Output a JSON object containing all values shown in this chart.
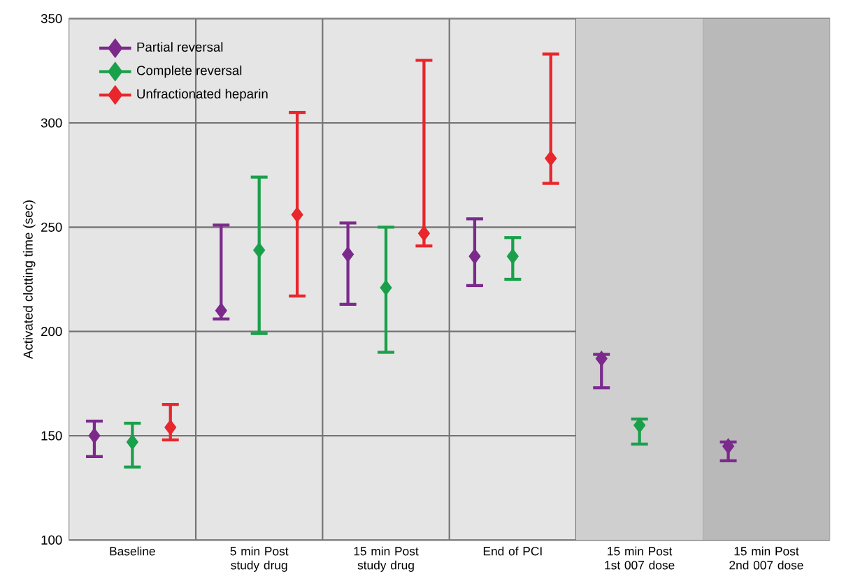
{
  "chart_data": {
    "type": "scatter",
    "ylabel": "Activated clotting time (sec)",
    "categories": [
      "Baseline",
      "5 min Post study drug",
      "15 min Post study drug",
      "End of PCI",
      "15 min Post 1st 007 dose",
      "15 min Post 2nd 007 dose"
    ],
    "series": [
      {
        "name": "Partial reversal",
        "color": "#7b2a8c",
        "values": [
          150,
          210,
          237,
          236,
          187,
          145
        ],
        "errors": [
          [
            140,
            157
          ],
          [
            206,
            251
          ],
          [
            213,
            252
          ],
          [
            222,
            254
          ],
          [
            173,
            189
          ],
          [
            138,
            147
          ]
        ]
      },
      {
        "name": "Complete reversal",
        "color": "#1aa04a",
        "values": [
          147,
          239,
          221,
          236,
          155,
          null
        ],
        "errors": [
          [
            135,
            156
          ],
          [
            199,
            274
          ],
          [
            190,
            250
          ],
          [
            225,
            245
          ],
          [
            146,
            158
          ],
          null
        ]
      },
      {
        "name": "Unfractionated heparin",
        "color": "#e8262b",
        "values": [
          154,
          256,
          247,
          283,
          null,
          null
        ],
        "errors": [
          [
            148,
            165
          ],
          [
            217,
            305
          ],
          [
            241,
            330
          ],
          [
            271,
            333
          ],
          null,
          null
        ]
      }
    ],
    "ylim": [
      100,
      350
    ],
    "yticks": [
      100,
      150,
      200,
      250,
      300,
      350
    ],
    "bands": [
      {
        "axis": "x",
        "from": "15 min Post 1st 007 dose",
        "to": "15 min Post 1st 007 dose",
        "color": "#cfcfcf"
      },
      {
        "axis": "x",
        "from": "15 min Post 2nd 007 dose",
        "to": "15 min Post 2nd 007 dose",
        "color": "#b9b9b9"
      }
    ],
    "grid": true,
    "legend": "top left",
    "marker": "diamond",
    "line_style": "solid"
  }
}
